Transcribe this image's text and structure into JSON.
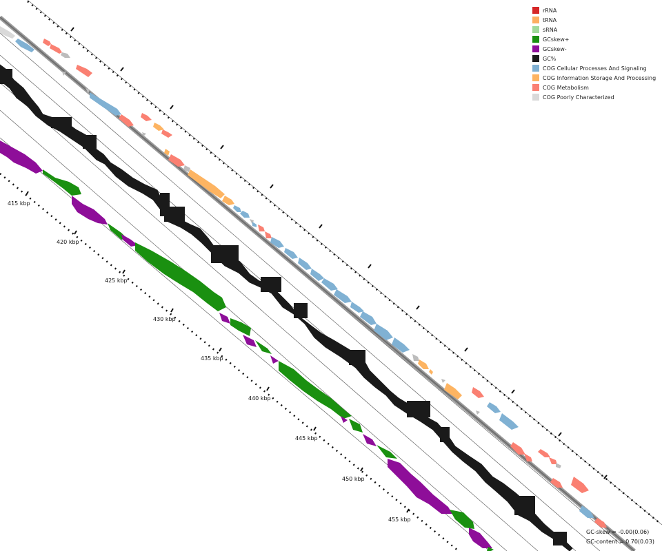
{
  "legend": [
    {
      "label": "rRNA",
      "color": "#d62728"
    },
    {
      "label": "tRNA",
      "color": "#fdae61"
    },
    {
      "label": "sRNA",
      "color": "#a1d99b"
    },
    {
      "label": "GCskew+",
      "color": "#1a9010"
    },
    {
      "label": "GCskew-",
      "color": "#8e0e99"
    },
    {
      "label": "GC%",
      "color": "#1a1a1a"
    },
    {
      "label": "COG Cellular Processes And Signaling",
      "color": "#80b1d3"
    },
    {
      "label": "COG Information Storage And Processing",
      "color": "#fdb462"
    },
    {
      "label": "COG Metabolism",
      "color": "#fa8072"
    },
    {
      "label": "COG Poorly Characterized",
      "color": "#d9d9d9"
    }
  ],
  "stats": {
    "gc_skew": "GC-skew = -0.00(0.06)",
    "gc_content": "GC-content = 0.70(0.03)"
  },
  "scale": {
    "ticks": [
      {
        "label": "415 kbp",
        "kbp": 415
      },
      {
        "label": "420 kbp",
        "kbp": 420
      },
      {
        "label": "425 kbp",
        "kbp": 425
      },
      {
        "label": "430 kbp",
        "kbp": 430
      },
      {
        "label": "435 kbp",
        "kbp": 435
      },
      {
        "label": "440 kbp",
        "kbp": 440
      },
      {
        "label": "445 kbp",
        "kbp": 445
      },
      {
        "label": "450 kbp",
        "kbp": 450
      },
      {
        "label": "455 kbp",
        "kbp": 455
      }
    ]
  }
}
